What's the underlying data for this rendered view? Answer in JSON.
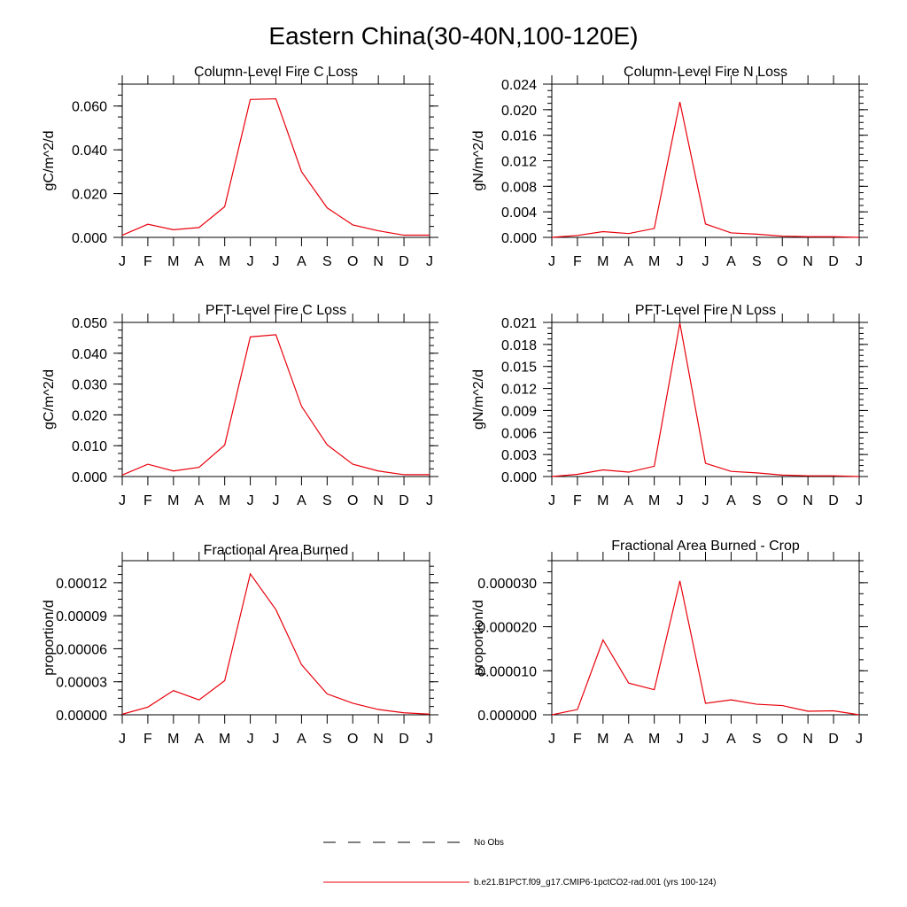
{
  "title": "Eastern China(30-40N,100-120E)",
  "month_labels": [
    "J",
    "F",
    "M",
    "A",
    "M",
    "J",
    "J",
    "A",
    "S",
    "O",
    "N",
    "D",
    "J"
  ],
  "chart_data": [
    {
      "type": "line",
      "title": "Column-Level Fire C Loss",
      "ylabel": "gC/m^2/d",
      "ylim": [
        0,
        0.07
      ],
      "yticks": [
        0.0,
        0.02,
        0.04,
        0.06
      ],
      "ytick_labels": [
        "0.000",
        "0.020",
        "0.040",
        "0.060"
      ],
      "series": [
        {
          "values": [
            0.001,
            0.006,
            0.0035,
            0.0045,
            0.014,
            0.063,
            0.0633,
            0.03,
            0.0135,
            0.0057,
            0.003,
            0.001,
            0.001
          ]
        }
      ]
    },
    {
      "type": "line",
      "title": "Column-Level Fire N Loss",
      "ylabel": "gN/m^2/d",
      "ylim": [
        0,
        0.024
      ],
      "yticks": [
        0.0,
        0.004,
        0.008,
        0.012,
        0.016,
        0.02,
        0.024
      ],
      "ytick_labels": [
        "0.000",
        "0.004",
        "0.008",
        "0.012",
        "0.016",
        "0.020",
        "0.024"
      ],
      "series": [
        {
          "values": [
            0.0,
            0.0003,
            0.0009,
            0.0006,
            0.0014,
            0.0212,
            0.0021,
            0.0007,
            0.0005,
            0.0002,
            0.0001,
            0.0001,
            0.0
          ]
        }
      ]
    },
    {
      "type": "line",
      "title": "PFT-Level Fire C Loss",
      "ylabel": "gC/m^2/d",
      "ylim": [
        0,
        0.05
      ],
      "yticks": [
        0.0,
        0.01,
        0.02,
        0.03,
        0.04,
        0.05
      ],
      "ytick_labels": [
        "0.000",
        "0.010",
        "0.020",
        "0.030",
        "0.040",
        "0.050"
      ],
      "series": [
        {
          "values": [
            0.0005,
            0.004,
            0.0018,
            0.003,
            0.0102,
            0.0453,
            0.046,
            0.0228,
            0.0103,
            0.004,
            0.0018,
            0.0006,
            0.0006
          ]
        }
      ]
    },
    {
      "type": "line",
      "title": "PFT-Level Fire N Loss",
      "ylabel": "gN/m^2/d",
      "ylim": [
        0,
        0.021
      ],
      "yticks": [
        0.0,
        0.003,
        0.006,
        0.009,
        0.012,
        0.015,
        0.018,
        0.021
      ],
      "ytick_labels": [
        "0.000",
        "0.003",
        "0.006",
        "0.009",
        "0.012",
        "0.015",
        "0.018",
        "0.021"
      ],
      "series": [
        {
          "values": [
            0.0,
            0.0003,
            0.0009,
            0.0006,
            0.0014,
            0.0209,
            0.0018,
            0.0007,
            0.0005,
            0.0002,
            0.0001,
            0.0001,
            0.0
          ]
        }
      ]
    },
    {
      "type": "line",
      "title": "Fractional Area Burned",
      "ylabel": "proportion/d",
      "ylim": [
        0,
        0.00014
      ],
      "yticks": [
        0.0,
        3e-05,
        6e-05,
        9e-05,
        0.00012
      ],
      "ytick_labels": [
        "0.00000",
        "0.00003",
        "0.00006",
        "0.00009",
        "0.00012"
      ],
      "series": [
        {
          "values": [
            5e-07,
            7e-06,
            2.2e-05,
            1.35e-05,
            3.1e-05,
            0.000128,
            9.55e-05,
            4.55e-05,
            1.9e-05,
            1.05e-05,
            4.8e-06,
            1.8e-06,
            6e-07
          ]
        }
      ]
    },
    {
      "type": "line",
      "title": "Fractional Area Burned - Crop",
      "ylabel": "proportion/d",
      "ylim": [
        0,
        3.5e-05
      ],
      "yticks": [
        0.0,
        1e-05,
        2e-05,
        3e-05
      ],
      "ytick_labels": [
        "0.000000",
        "0.000010",
        "0.000020",
        "0.000030"
      ],
      "series": [
        {
          "values": [
            0.0,
            1.2e-06,
            1.7e-05,
            7.2e-06,
            5.7e-06,
            3.04e-05,
            2.6e-06,
            3.4e-06,
            2.4e-06,
            2.1e-06,
            8e-07,
            9e-07,
            0.0
          ]
        }
      ]
    }
  ],
  "legend": [
    {
      "label": "No Obs",
      "color": "#000000",
      "style": "dashed"
    },
    {
      "label": "b.e21.B1PCT.f09_g17.CMIP6-1pctCO2-rad.001 (yrs 100-124)",
      "color": "#e8000b",
      "style": "solid"
    }
  ],
  "colors": {
    "series": "#e8000b",
    "axis": "#000000"
  }
}
